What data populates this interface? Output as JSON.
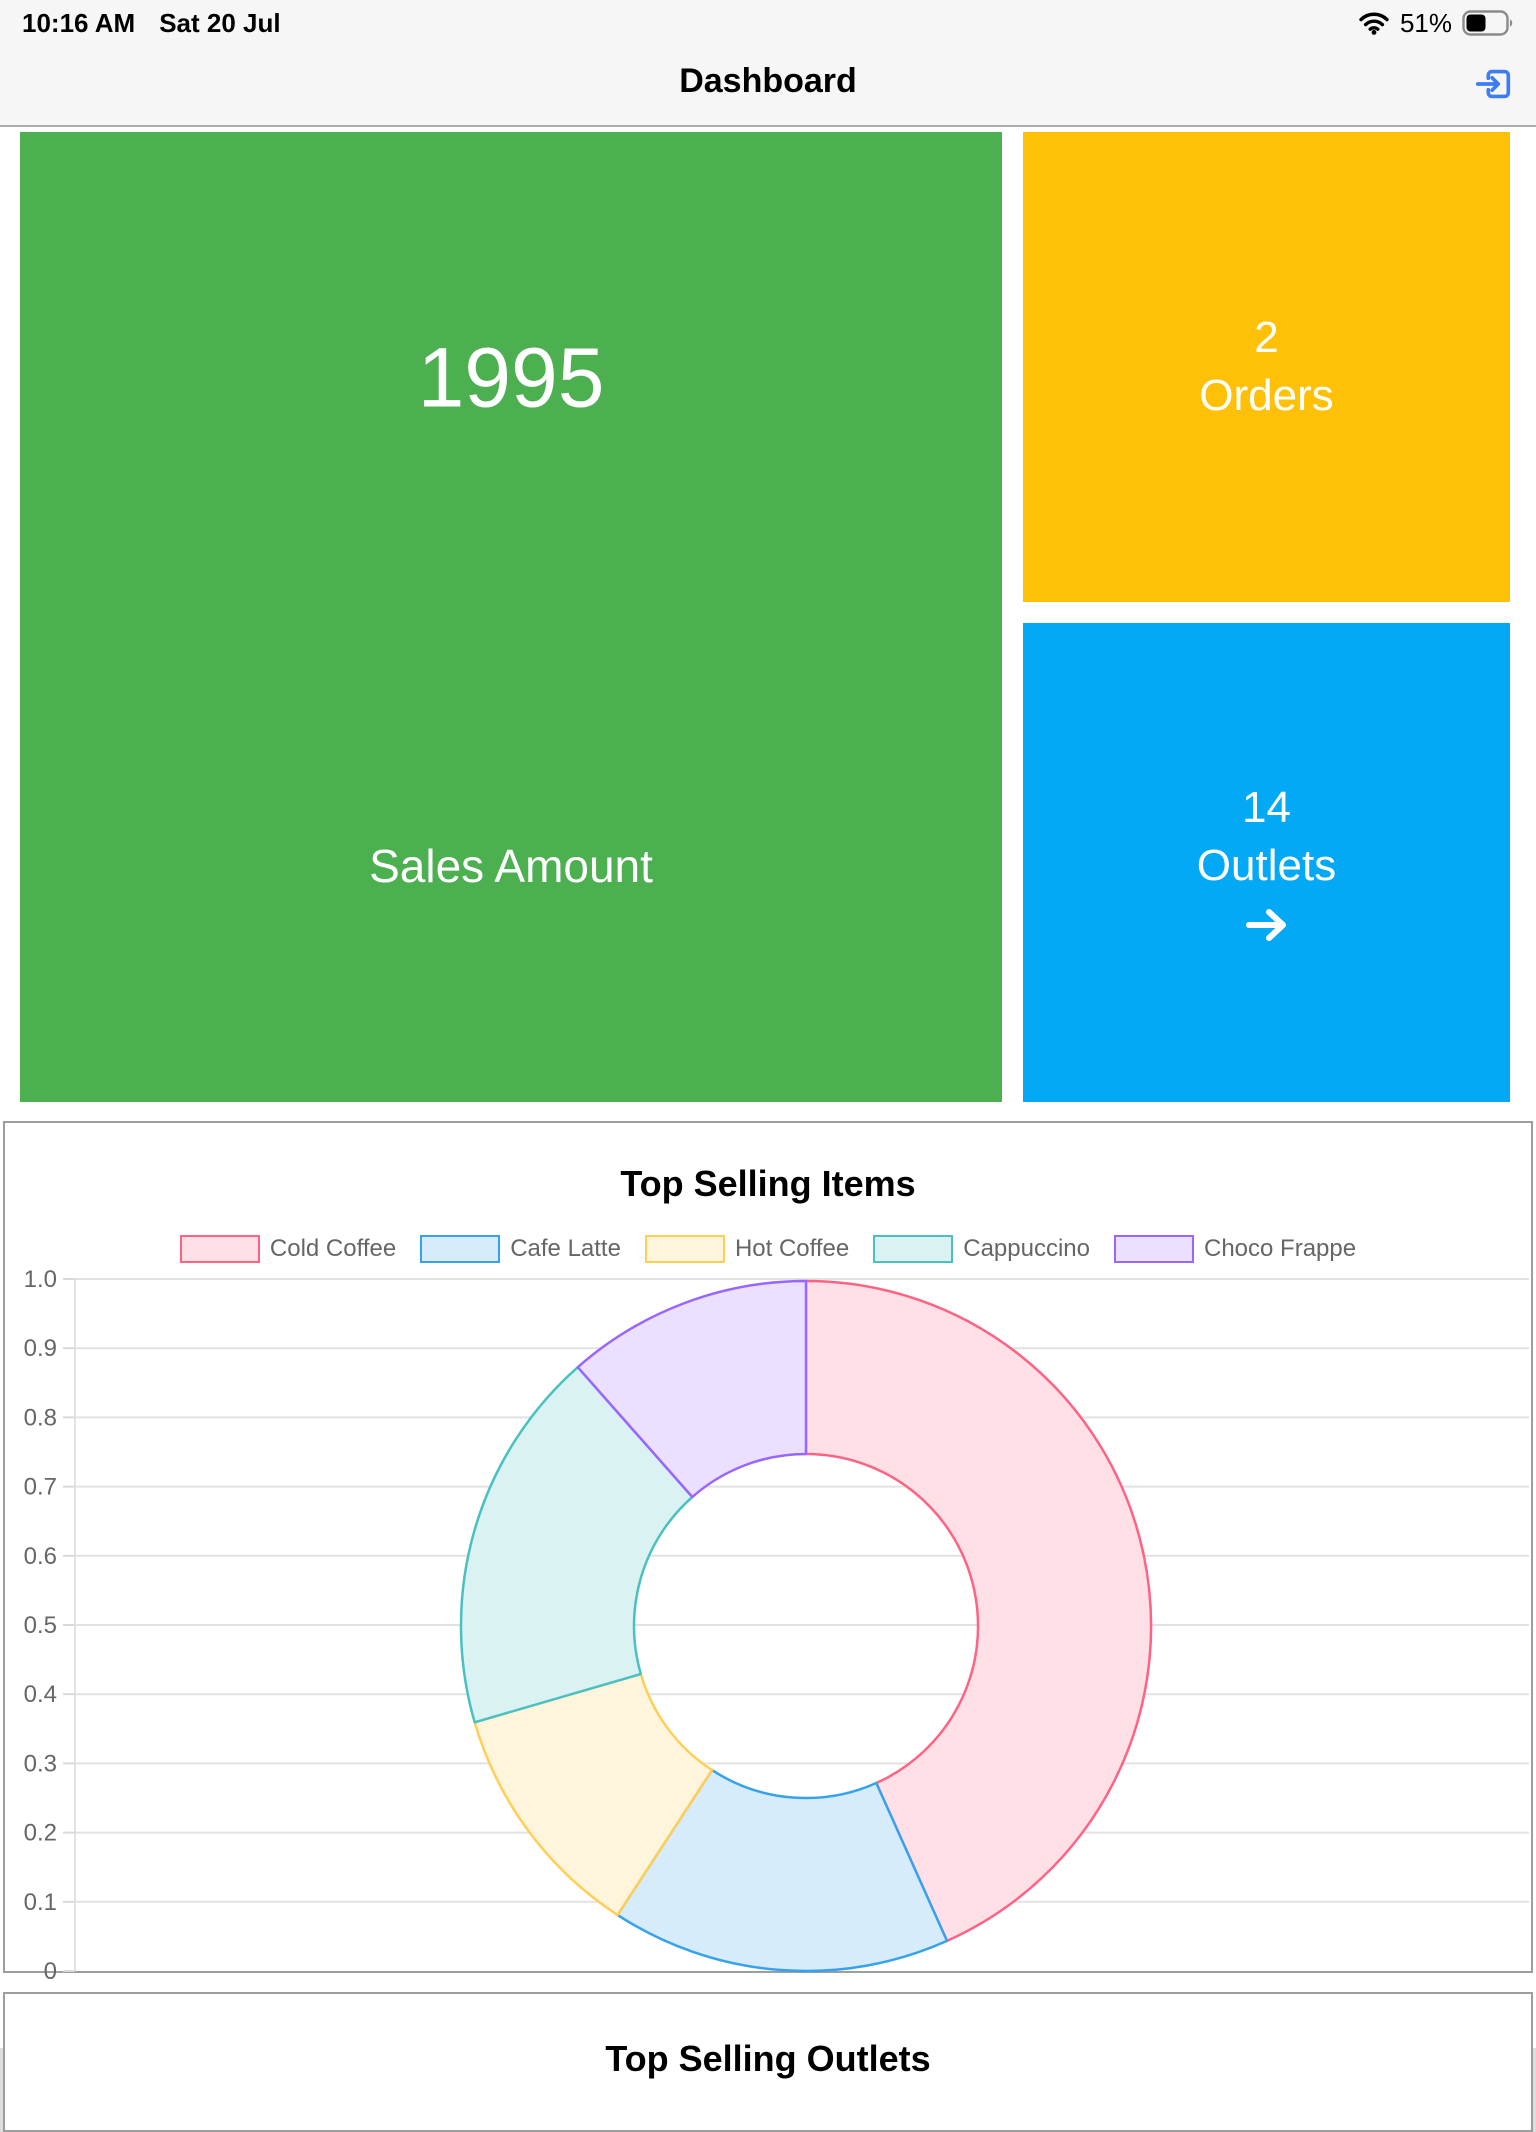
{
  "status_bar": {
    "time": "10:16 AM",
    "date": "Sat 20 Jul",
    "battery_text": "51%",
    "battery_level_percent": 51,
    "icons": [
      "wifi-icon",
      "battery-icon"
    ]
  },
  "nav_bar": {
    "title": "Dashboard",
    "action_icon": "exit-to-app-icon",
    "accent_color": "#3d7cf5"
  },
  "tiles": {
    "sales": {
      "value": "1995",
      "label": "Sales Amount",
      "color": "#4caf50"
    },
    "orders": {
      "value": "2",
      "label": "Orders",
      "color": "#ffc107"
    },
    "outlets": {
      "value": "14",
      "label": "Outlets",
      "color": "#03a9f4",
      "arrow_icon": "arrow-right-icon"
    }
  },
  "chart_card": {
    "title": "Top Selling Items"
  },
  "chart_data": {
    "type": "pie",
    "donut": true,
    "title": "Top Selling Items",
    "labels": [
      "Cold Coffee",
      "Cafe Latte",
      "Hot Coffee",
      "Cappuccino",
      "Choco Frappe"
    ],
    "values_percent": [
      43.3,
      15.9,
      11.3,
      18.0,
      11.5
    ],
    "colors": [
      {
        "border": "#FF6384",
        "fill": "#FFE0E7"
      },
      {
        "border": "#36A2EB",
        "fill": "#D7ECFB"
      },
      {
        "border": "#FFCE56",
        "fill": "#FFF5DD"
      },
      {
        "border": "#4BC0C0",
        "fill": "#DBF2F2"
      },
      {
        "border": "#9966FF",
        "fill": "#EBE0FF"
      }
    ],
    "start_angle_deg": -90,
    "clockwise": true,
    "legend_position": "top",
    "axis": {
      "position": "left",
      "min": 0,
      "max": 1,
      "grid": true,
      "ticks": [
        "1.0",
        "0.9",
        "0.8",
        "0.7",
        "0.6",
        "0.5",
        "0.4",
        "0.3",
        "0.2",
        "0.1",
        "0"
      ]
    }
  },
  "next_card": {
    "title": "Top Selling Outlets"
  }
}
